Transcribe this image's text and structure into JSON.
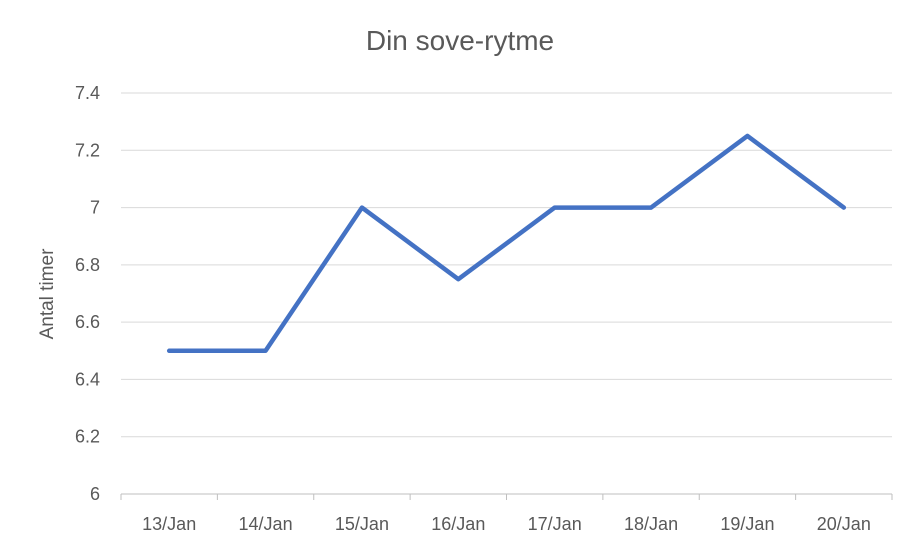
{
  "chart_data": {
    "type": "line",
    "title": "Din sove-rytme",
    "xlabel": "",
    "ylabel": "Antal timer",
    "categories": [
      "13/Jan",
      "14/Jan",
      "15/Jan",
      "16/Jan",
      "17/Jan",
      "18/Jan",
      "19/Jan",
      "20/Jan"
    ],
    "series": [
      {
        "values": [
          6.5,
          6.5,
          7.0,
          6.75,
          7.0,
          7.0,
          7.25,
          7.0
        ]
      }
    ],
    "ylim": [
      6,
      7.4
    ],
    "yticks": [
      "6",
      "6.2",
      "6.4",
      "6.6",
      "6.8",
      "7",
      "7.2",
      "7.4"
    ],
    "grid": true,
    "legend": "none",
    "colors": {
      "line": "#4472c4"
    }
  }
}
